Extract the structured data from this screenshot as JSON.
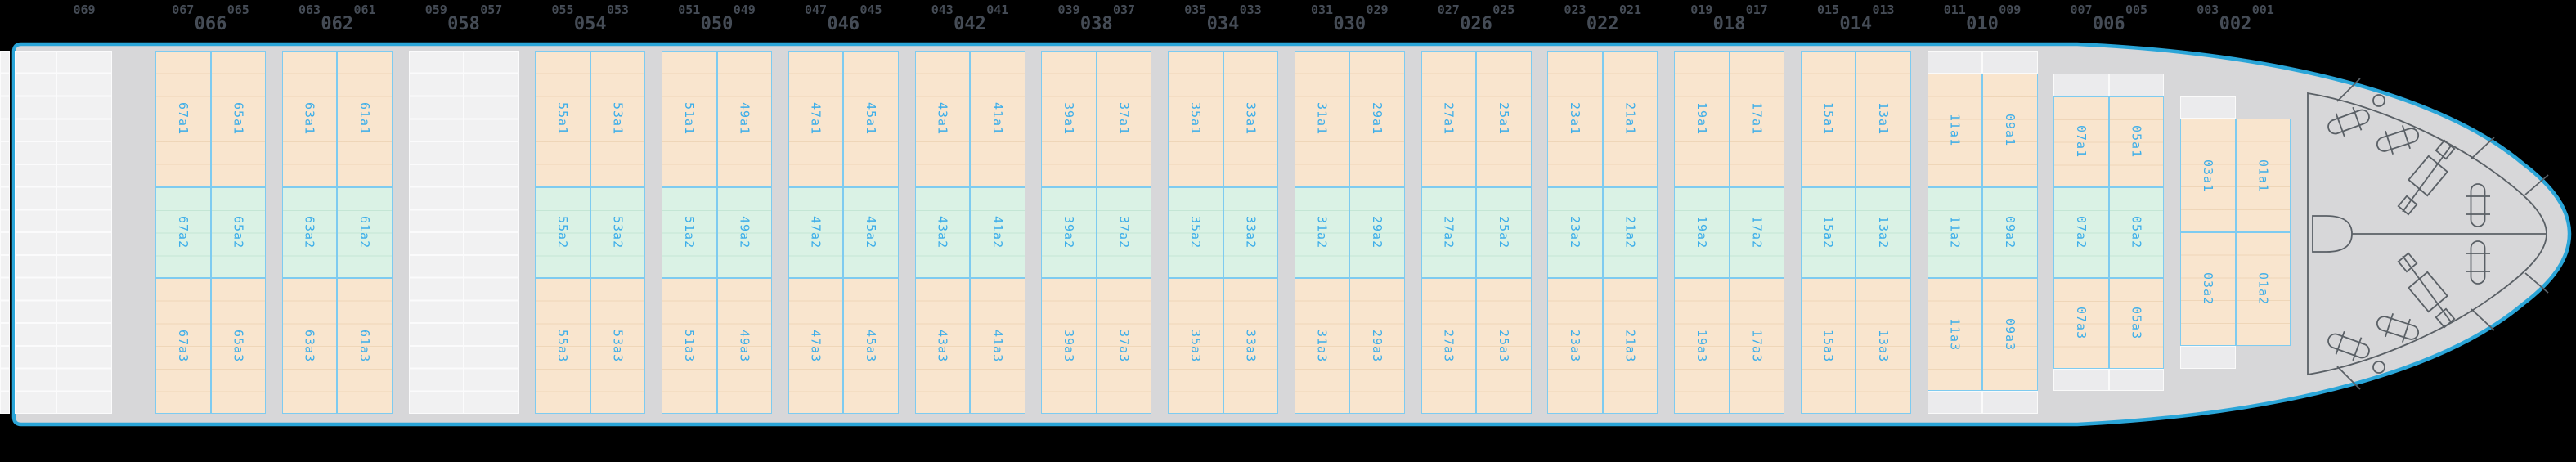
{
  "app": "vessel-bay-plan-deck-view",
  "colors": {
    "background": "#000000",
    "hull_stroke": "#2aa5d8",
    "deck_fill": "#d7d7d9",
    "cell_peach": "#f9e5ce",
    "cell_mint": "#daf2e5",
    "cell_empty": "#f1f1f2",
    "cell_cap": "#ebebed",
    "cell_border": "#7ecbf0",
    "cell_label_text": "#3daee9",
    "ruler_text": "#454c56",
    "equipment_stroke": "#5a6066"
  },
  "top_ruler": {
    "odd_labels": [
      "069",
      "067",
      "065",
      "063",
      "061",
      "059",
      "057",
      "055",
      "053",
      "051",
      "049",
      "047",
      "045",
      "043",
      "041",
      "039",
      "037",
      "035",
      "033",
      "031",
      "029",
      "027",
      "025",
      "023",
      "021",
      "019",
      "017",
      "015",
      "013",
      "011",
      "009",
      "007",
      "005",
      "003",
      "001"
    ],
    "even_labels": [
      "066",
      "062",
      "058",
      "054",
      "050",
      "046",
      "042",
      "038",
      "034",
      "030",
      "026",
      "022",
      "018",
      "014",
      "010",
      "006",
      "002"
    ]
  },
  "bays": [
    {
      "even": "066",
      "type": "full",
      "cells": {
        "a1": [
          "67a1",
          "65a1"
        ],
        "a2": [
          "67a2",
          "65a2"
        ],
        "a3": [
          "67a3",
          "65a3"
        ]
      }
    },
    {
      "even": "062",
      "type": "full",
      "cells": {
        "a1": [
          "63a1",
          "61a1"
        ],
        "a2": [
          "63a2",
          "61a2"
        ],
        "a3": [
          "63a3",
          "61a3"
        ]
      }
    },
    {
      "even": "058",
      "type": "empty",
      "cells": {}
    },
    {
      "even": "054",
      "type": "full",
      "cells": {
        "a1": [
          "55a1",
          "53a1"
        ],
        "a2": [
          "55a2",
          "53a2"
        ],
        "a3": [
          "55a3",
          "53a3"
        ]
      }
    },
    {
      "even": "050",
      "type": "full",
      "cells": {
        "a1": [
          "51a1",
          "49a1"
        ],
        "a2": [
          "51a2",
          "49a2"
        ],
        "a3": [
          "51a3",
          "49a3"
        ]
      }
    },
    {
      "even": "046",
      "type": "full",
      "cells": {
        "a1": [
          "47a1",
          "45a1"
        ],
        "a2": [
          "47a2",
          "45a2"
        ],
        "a3": [
          "47a3",
          "45a3"
        ]
      }
    },
    {
      "even": "042",
      "type": "full",
      "cells": {
        "a1": [
          "43a1",
          "41a1"
        ],
        "a2": [
          "43a2",
          "41a2"
        ],
        "a3": [
          "43a3",
          "41a3"
        ]
      }
    },
    {
      "even": "038",
      "type": "full",
      "cells": {
        "a1": [
          "39a1",
          "37a1"
        ],
        "a2": [
          "39a2",
          "37a2"
        ],
        "a3": [
          "39a3",
          "37a3"
        ]
      }
    },
    {
      "even": "034",
      "type": "full",
      "cells": {
        "a1": [
          "35a1",
          "33a1"
        ],
        "a2": [
          "35a2",
          "33a2"
        ],
        "a3": [
          "35a3",
          "33a3"
        ]
      }
    },
    {
      "even": "030",
      "type": "full",
      "cells": {
        "a1": [
          "31a1",
          "29a1"
        ],
        "a2": [
          "31a2",
          "29a2"
        ],
        "a3": [
          "31a3",
          "29a3"
        ]
      }
    },
    {
      "even": "026",
      "type": "full",
      "cells": {
        "a1": [
          "27a1",
          "25a1"
        ],
        "a2": [
          "27a2",
          "25a2"
        ],
        "a3": [
          "27a3",
          "25a3"
        ]
      }
    },
    {
      "even": "022",
      "type": "full",
      "cells": {
        "a1": [
          "23a1",
          "21a1"
        ],
        "a2": [
          "23a2",
          "21a2"
        ],
        "a3": [
          "23a3",
          "21a3"
        ]
      }
    },
    {
      "even": "018",
      "type": "full",
      "cells": {
        "a1": [
          "19a1",
          "17a1"
        ],
        "a2": [
          "19a2",
          "17a2"
        ],
        "a3": [
          "19a3",
          "17a3"
        ]
      }
    },
    {
      "even": "014",
      "type": "full",
      "cells": {
        "a1": [
          "15a1",
          "13a1"
        ],
        "a2": [
          "15a2",
          "13a2"
        ],
        "a3": [
          "15a3",
          "13a3"
        ]
      }
    },
    {
      "even": "010",
      "type": "capped",
      "cells": {
        "a1": [
          "11a1",
          "09a1"
        ],
        "a2": [
          "11a2",
          "09a2"
        ],
        "a3": [
          "11a3",
          "09a3"
        ]
      }
    },
    {
      "even": "006",
      "type": "short",
      "cells": {
        "a1": [
          "07a1",
          "05a1"
        ],
        "a2": [
          "07a2",
          "05a2"
        ],
        "a3": [
          "07a3",
          "05a3"
        ]
      }
    },
    {
      "even": "002",
      "type": "bow",
      "cells": {
        "a1": [
          "03a1",
          "01a1"
        ],
        "a2": [
          "03a2",
          "01a2"
        ]
      }
    }
  ],
  "stern_empty_block": {
    "description": "unlabeled empty grid bay at stern, 2 columns x 16 rows"
  },
  "clipped_strip": {
    "description": "partially visible empty cell column at left image edge"
  }
}
